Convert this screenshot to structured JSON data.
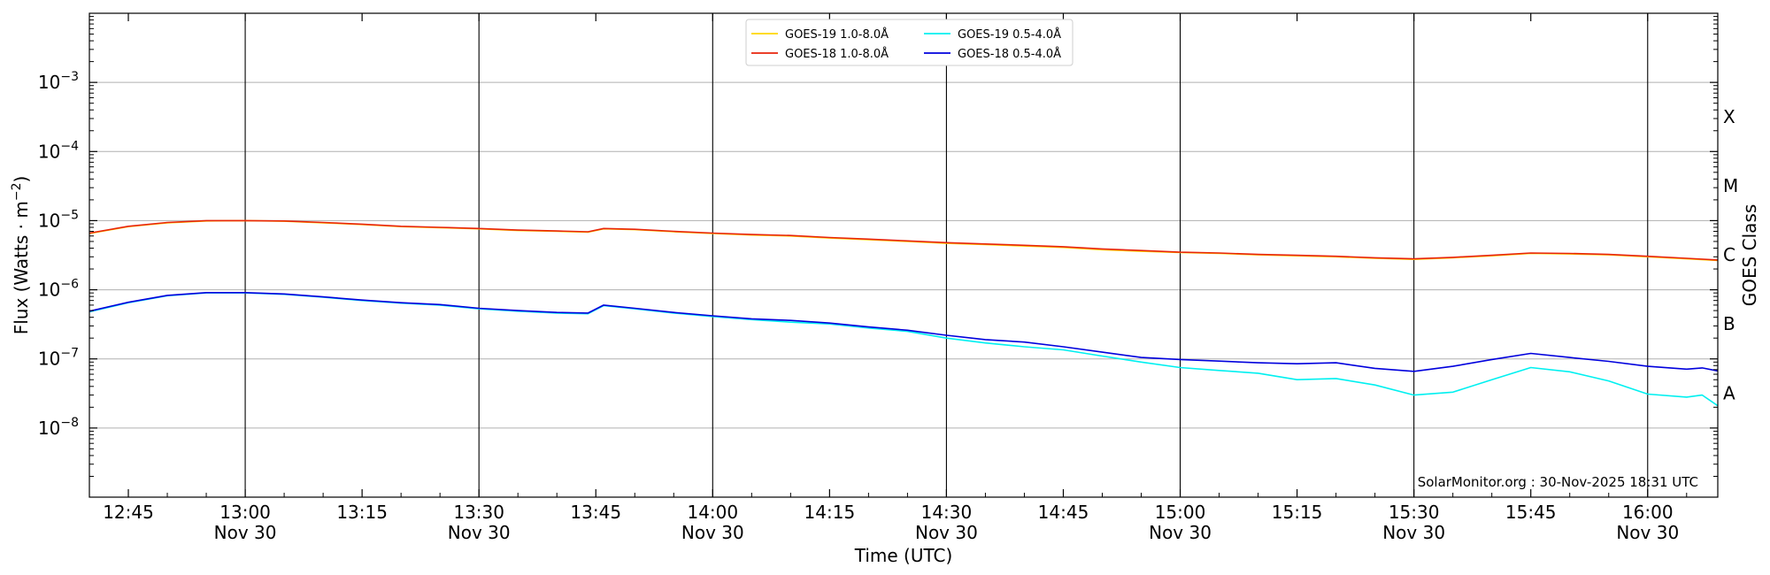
{
  "chart_data": {
    "type": "line",
    "x_label": "Time (UTC)",
    "y_label_prefix": "Flux (Watts · m",
    "y_label_exp": "−2",
    "y_label_suffix": ")",
    "right_label": "GOES Class",
    "annotation": "SolarMonitor.org : 30-Nov-2025 18:31 UTC",
    "y_scale": "log",
    "y_range": [
      1e-09,
      0.01
    ],
    "x_range": [
      "12:40",
      "16:09"
    ],
    "x_ticks": [
      {
        "time": "12:45",
        "line1": "12:45",
        "line2": ""
      },
      {
        "time": "13:00",
        "line1": "13:00",
        "line2": "Nov 30"
      },
      {
        "time": "13:15",
        "line1": "13:15",
        "line2": ""
      },
      {
        "time": "13:30",
        "line1": "13:30",
        "line2": "Nov 30"
      },
      {
        "time": "13:45",
        "line1": "13:45",
        "line2": ""
      },
      {
        "time": "14:00",
        "line1": "14:00",
        "line2": "Nov 30"
      },
      {
        "time": "14:15",
        "line1": "14:15",
        "line2": ""
      },
      {
        "time": "14:30",
        "line1": "14:30",
        "line2": "Nov 30"
      },
      {
        "time": "14:45",
        "line1": "14:45",
        "line2": ""
      },
      {
        "time": "15:00",
        "line1": "15:00",
        "line2": "Nov 30"
      },
      {
        "time": "15:15",
        "line1": "15:15",
        "line2": ""
      },
      {
        "time": "15:30",
        "line1": "15:30",
        "line2": "Nov 30"
      },
      {
        "time": "15:45",
        "line1": "15:45",
        "line2": ""
      },
      {
        "time": "16:00",
        "line1": "16:00",
        "line2": "Nov 30"
      }
    ],
    "y_ticks": [
      {
        "value": 0.001,
        "base": "10",
        "exp": "−3"
      },
      {
        "value": 0.0001,
        "base": "10",
        "exp": "−4"
      },
      {
        "value": 1e-05,
        "base": "10",
        "exp": "−5"
      },
      {
        "value": 1e-06,
        "base": "10",
        "exp": "−6"
      },
      {
        "value": 1e-07,
        "base": "10",
        "exp": "−7"
      },
      {
        "value": 1e-08,
        "base": "10",
        "exp": "−8"
      }
    ],
    "goes_classes": [
      {
        "label": "X",
        "value": 0.00032
      },
      {
        "label": "M",
        "value": 3.2e-05
      },
      {
        "label": "C",
        "value": 3.2e-06
      },
      {
        "label": "B",
        "value": 3.2e-07
      },
      {
        "label": "A",
        "value": 3.2e-08
      }
    ],
    "day_lines": [
      "13:00",
      "13:30",
      "14:00",
      "14:30",
      "15:00",
      "15:30",
      "16:00"
    ],
    "grid": "horizontal at decades",
    "legend_placement": "top-center",
    "series": [
      {
        "name": "GOES-19 1.0-8.0Å",
        "color": "#FFD700",
        "x": [
          "12:40",
          "12:45",
          "12:50",
          "12:55",
          "13:00",
          "13:05",
          "13:10",
          "13:15",
          "13:20",
          "13:25",
          "13:30",
          "13:35",
          "13:40",
          "13:44",
          "13:46",
          "13:50",
          "13:55",
          "14:00",
          "14:05",
          "14:10",
          "14:15",
          "14:20",
          "14:25",
          "14:30",
          "14:35",
          "14:40",
          "14:45",
          "14:50",
          "14:55",
          "15:00",
          "15:05",
          "15:10",
          "15:15",
          "15:20",
          "15:25",
          "15:30",
          "15:35",
          "15:40",
          "15:45",
          "15:50",
          "15:55",
          "16:00",
          "16:05",
          "16:09"
        ],
        "y": [
          6.5e-06,
          8.2e-06,
          9.3e-06,
          9.9e-06,
          1e-05,
          9.8e-06,
          9.3e-06,
          8.8e-06,
          8.2e-06,
          7.9e-06,
          7.6e-06,
          7.2e-06,
          7e-06,
          6.8e-06,
          7.6e-06,
          7.4e-06,
          6.9e-06,
          6.5e-06,
          6.2e-06,
          6e-06,
          5.6e-06,
          5.3e-06,
          5e-06,
          4.7e-06,
          4.5e-06,
          4.3e-06,
          4.1e-06,
          3.8e-06,
          3.6e-06,
          3.45e-06,
          3.35e-06,
          3.2e-06,
          3.1e-06,
          3e-06,
          2.85e-06,
          2.75e-06,
          2.9e-06,
          3.1e-06,
          3.35e-06,
          3.3e-06,
          3.2e-06,
          3e-06,
          2.8e-06,
          2.65e-06
        ]
      },
      {
        "name": "GOES-18 1.0-8.0Å",
        "color": "#E8250C",
        "x": [
          "12:40",
          "12:45",
          "12:50",
          "12:55",
          "13:00",
          "13:05",
          "13:10",
          "13:15",
          "13:20",
          "13:25",
          "13:30",
          "13:35",
          "13:40",
          "13:44",
          "13:46",
          "13:50",
          "13:55",
          "14:00",
          "14:05",
          "14:10",
          "14:15",
          "14:20",
          "14:25",
          "14:30",
          "14:35",
          "14:40",
          "14:45",
          "14:50",
          "14:55",
          "15:00",
          "15:05",
          "15:10",
          "15:15",
          "15:20",
          "15:25",
          "15:30",
          "15:35",
          "15:40",
          "15:45",
          "15:50",
          "15:55",
          "16:00",
          "16:05",
          "16:09"
        ],
        "y": [
          6.6e-06,
          8.3e-06,
          9.4e-06,
          1e-05,
          1e-05,
          9.9e-06,
          9.4e-06,
          8.9e-06,
          8.3e-06,
          8e-06,
          7.7e-06,
          7.3e-06,
          7.1e-06,
          6.9e-06,
          7.7e-06,
          7.5e-06,
          7e-06,
          6.6e-06,
          6.3e-06,
          6.1e-06,
          5.7e-06,
          5.4e-06,
          5.1e-06,
          4.8e-06,
          4.6e-06,
          4.4e-06,
          4.2e-06,
          3.9e-06,
          3.7e-06,
          3.5e-06,
          3.4e-06,
          3.25e-06,
          3.15e-06,
          3.05e-06,
          2.9e-06,
          2.8e-06,
          2.95e-06,
          3.15e-06,
          3.4e-06,
          3.35e-06,
          3.25e-06,
          3.05e-06,
          2.85e-06,
          2.7e-06
        ]
      },
      {
        "name": "GOES-19 0.5-4.0Å",
        "color": "#00F0F0",
        "x": [
          "12:40",
          "12:45",
          "12:50",
          "12:55",
          "13:00",
          "13:05",
          "13:10",
          "13:15",
          "13:20",
          "13:25",
          "13:30",
          "13:35",
          "13:40",
          "13:44",
          "13:46",
          "13:50",
          "13:55",
          "14:00",
          "14:05",
          "14:10",
          "14:15",
          "14:20",
          "14:25",
          "14:30",
          "14:35",
          "14:40",
          "14:45",
          "14:50",
          "14:55",
          "15:00",
          "15:05",
          "15:10",
          "15:15",
          "15:20",
          "15:25",
          "15:30",
          "15:35",
          "15:40",
          "15:45",
          "15:50",
          "15:55",
          "16:00",
          "16:05",
          "16:07",
          "16:09"
        ],
        "y": [
          4.8e-07,
          6.5e-07,
          8.2e-07,
          9e-07,
          9e-07,
          8.6e-07,
          7.8e-07,
          7e-07,
          6.4e-07,
          6e-07,
          5.3e-07,
          4.9e-07,
          4.6e-07,
          4.5e-07,
          5.9e-07,
          5.3e-07,
          4.6e-07,
          4.1e-07,
          3.7e-07,
          3.4e-07,
          3.2e-07,
          2.8e-07,
          2.5e-07,
          2e-07,
          1.7e-07,
          1.5e-07,
          1.35e-07,
          1.1e-07,
          9e-08,
          7.5e-08,
          6.8e-08,
          6.2e-08,
          5e-08,
          5.2e-08,
          4.2e-08,
          3e-08,
          3.3e-08,
          5e-08,
          7.5e-08,
          6.5e-08,
          4.8e-08,
          3.1e-08,
          2.8e-08,
          3e-08,
          2.1e-08
        ]
      },
      {
        "name": "GOES-18 0.5-4.0Å",
        "color": "#0000DD",
        "x": [
          "12:40",
          "12:45",
          "12:50",
          "12:55",
          "13:00",
          "13:05",
          "13:10",
          "13:15",
          "13:20",
          "13:25",
          "13:30",
          "13:35",
          "13:40",
          "13:44",
          "13:46",
          "13:50",
          "13:55",
          "14:00",
          "14:05",
          "14:10",
          "14:15",
          "14:20",
          "14:25",
          "14:30",
          "14:35",
          "14:40",
          "14:45",
          "14:50",
          "14:55",
          "15:00",
          "15:05",
          "15:10",
          "15:15",
          "15:20",
          "15:25",
          "15:30",
          "15:35",
          "15:40",
          "15:45",
          "15:50",
          "15:55",
          "16:00",
          "16:05",
          "16:07",
          "16:09"
        ],
        "y": [
          4.9e-07,
          6.6e-07,
          8.3e-07,
          9.1e-07,
          9.1e-07,
          8.7e-07,
          7.9e-07,
          7.1e-07,
          6.5e-07,
          6.1e-07,
          5.4e-07,
          5e-07,
          4.7e-07,
          4.6e-07,
          6e-07,
          5.4e-07,
          4.7e-07,
          4.2e-07,
          3.8e-07,
          3.6e-07,
          3.3e-07,
          2.9e-07,
          2.6e-07,
          2.2e-07,
          1.9e-07,
          1.75e-07,
          1.5e-07,
          1.25e-07,
          1.05e-07,
          9.8e-08,
          9.3e-08,
          8.8e-08,
          8.5e-08,
          8.8e-08,
          7.3e-08,
          6.6e-08,
          7.8e-08,
          9.8e-08,
          1.2e-07,
          1.05e-07,
          9.2e-08,
          7.8e-08,
          7.1e-08,
          7.4e-08,
          6.7e-08
        ]
      }
    ]
  }
}
